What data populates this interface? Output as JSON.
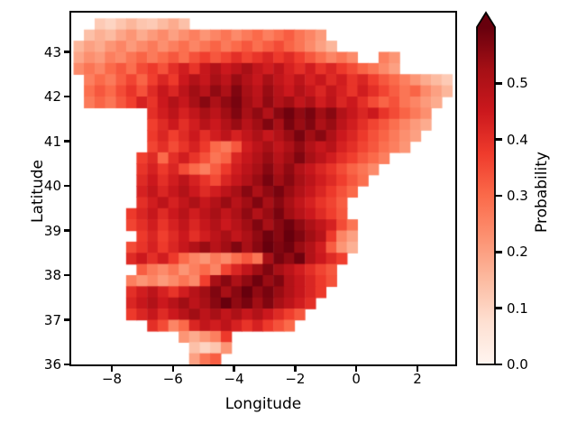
{
  "axes": {
    "xlabel": "Longitude",
    "ylabel": "Latitude",
    "xticks": [
      {
        "v": -8,
        "label": "−8"
      },
      {
        "v": -6,
        "label": "−6"
      },
      {
        "v": -4,
        "label": "−4"
      },
      {
        "v": -2,
        "label": "−2"
      },
      {
        "v": 0,
        "label": "0"
      },
      {
        "v": 2,
        "label": "2"
      }
    ],
    "yticks": [
      {
        "v": 43,
        "label": "43"
      },
      {
        "v": 42,
        "label": "42"
      },
      {
        "v": 41,
        "label": "41"
      },
      {
        "v": 40,
        "label": "40"
      },
      {
        "v": 39,
        "label": "39"
      },
      {
        "v": 38,
        "label": "38"
      },
      {
        "v": 37,
        "label": "37"
      },
      {
        "v": 36,
        "label": "36"
      }
    ],
    "xlim": [
      -9.32,
      3.22
    ],
    "ylim": [
      36.0,
      43.88
    ],
    "spine_color": "#000000",
    "text_color": "#000000",
    "background": "#ffffff"
  },
  "colorbar": {
    "label": "Probability",
    "extend": "max",
    "cmap": "Reds",
    "vmin": 0.0,
    "vmax": 0.6,
    "ticks": [
      {
        "v": 0.0,
        "label": "0.0"
      },
      {
        "v": 0.1,
        "label": "0.1"
      },
      {
        "v": 0.2,
        "label": "0.2"
      },
      {
        "v": 0.3,
        "label": "0.3"
      },
      {
        "v": 0.4,
        "label": "0.4"
      },
      {
        "v": 0.5,
        "label": "0.5"
      }
    ],
    "stops": [
      [
        0.0,
        "#fff5f0"
      ],
      [
        0.125,
        "#fee0d2"
      ],
      [
        0.25,
        "#fcbba1"
      ],
      [
        0.375,
        "#fc9272"
      ],
      [
        0.5,
        "#fb6a4a"
      ],
      [
        0.625,
        "#ef3b2c"
      ],
      [
        0.75,
        "#cb181d"
      ],
      [
        0.875,
        "#a50f15"
      ],
      [
        1.0,
        "#67000d"
      ]
    ]
  },
  "chart_data": {
    "type": "heatmap",
    "title": "",
    "xlabel": "Longitude",
    "ylabel": "Latitude",
    "value_label": "Probability",
    "vmin": 0.0,
    "vmax": 0.6,
    "lon_step": 0.344,
    "lat_step": 0.25,
    "lon_centers": [
      -9.08,
      -8.74,
      -8.39,
      -8.05,
      -7.7,
      -7.36,
      -7.02,
      -6.67,
      -6.33,
      -5.98,
      -5.64,
      -5.3,
      -4.95,
      -4.61,
      -4.26,
      -3.92,
      -3.58,
      -3.23,
      -2.89,
      -2.54,
      -2.2,
      -1.86,
      -1.51,
      -1.17,
      -0.82,
      -0.48,
      -0.14,
      0.21,
      0.55,
      0.9,
      1.24,
      1.58,
      1.93,
      2.27,
      2.62,
      2.96
    ],
    "lat_centers": [
      43.625,
      43.375,
      43.125,
      42.875,
      42.625,
      42.375,
      42.125,
      41.875,
      41.625,
      41.375,
      41.125,
      40.875,
      40.625,
      40.375,
      40.125,
      39.875,
      39.625,
      39.375,
      39.125,
      38.875,
      38.625,
      38.375,
      38.125,
      37.875,
      37.625,
      37.375,
      37.125,
      36.875,
      36.625,
      36.375,
      36.125
    ],
    "values": [
      [
        null,
        null,
        0.12,
        0.1,
        0.13,
        0.16,
        0.13,
        0.12,
        0.15,
        0.18,
        0.14,
        null,
        null,
        null,
        null,
        null,
        null,
        null,
        null,
        null,
        null,
        null,
        null,
        null,
        null,
        null,
        null,
        null,
        null,
        null,
        null,
        null,
        null,
        null,
        null,
        null
      ],
      [
        null,
        0.14,
        0.17,
        0.15,
        0.19,
        0.22,
        0.18,
        0.21,
        0.24,
        0.2,
        0.23,
        0.26,
        0.22,
        0.25,
        0.28,
        0.24,
        0.27,
        0.3,
        0.26,
        0.29,
        0.32,
        0.28,
        0.25,
        0.21,
        null,
        null,
        null,
        null,
        null,
        null,
        null,
        null,
        null,
        null,
        null,
        null
      ],
      [
        0.16,
        0.2,
        0.18,
        0.22,
        0.25,
        0.21,
        0.24,
        0.27,
        0.23,
        0.26,
        0.29,
        0.25,
        0.28,
        0.31,
        0.27,
        0.3,
        0.33,
        0.29,
        0.32,
        0.35,
        0.31,
        0.28,
        0.24,
        0.2,
        0.16,
        null,
        null,
        null,
        null,
        null,
        null,
        null,
        null,
        null,
        null,
        null
      ],
      [
        0.19,
        0.23,
        0.21,
        0.26,
        0.24,
        0.28,
        0.31,
        0.27,
        0.3,
        0.33,
        0.29,
        0.34,
        0.37,
        0.33,
        0.36,
        0.4,
        0.36,
        0.39,
        0.42,
        0.38,
        0.41,
        0.37,
        0.33,
        0.29,
        0.25,
        0.28,
        0.24,
        null,
        null,
        0.26,
        0.22,
        null,
        null,
        null,
        null,
        null
      ],
      [
        0.24,
        0.28,
        0.25,
        0.3,
        0.33,
        0.29,
        0.35,
        0.38,
        0.34,
        0.4,
        0.44,
        0.39,
        0.46,
        0.5,
        0.45,
        0.48,
        0.52,
        0.47,
        0.44,
        0.48,
        0.43,
        0.4,
        0.44,
        0.39,
        0.42,
        0.38,
        0.35,
        0.31,
        0.28,
        0.24,
        0.2,
        null,
        null,
        null,
        null,
        null
      ],
      [
        null,
        0.26,
        0.3,
        0.27,
        0.32,
        0.36,
        0.31,
        0.37,
        0.42,
        0.38,
        0.45,
        0.5,
        0.46,
        0.52,
        0.48,
        0.54,
        0.5,
        0.46,
        0.52,
        0.47,
        0.44,
        0.48,
        0.43,
        0.46,
        0.41,
        0.44,
        0.39,
        0.42,
        0.37,
        0.33,
        0.3,
        0.26,
        0.22,
        0.18,
        0.15,
        0.12
      ],
      [
        null,
        0.29,
        0.33,
        0.3,
        0.35,
        0.39,
        0.34,
        0.41,
        0.46,
        0.42,
        0.48,
        0.53,
        0.49,
        0.55,
        0.51,
        0.57,
        0.52,
        0.48,
        0.54,
        0.49,
        0.45,
        0.5,
        0.46,
        0.42,
        0.47,
        0.43,
        0.39,
        0.44,
        0.4,
        0.36,
        0.32,
        0.28,
        0.31,
        0.24,
        0.2,
        0.16
      ],
      [
        null,
        0.27,
        0.31,
        0.28,
        0.33,
        0.37,
        0.43,
        0.39,
        0.45,
        0.5,
        0.46,
        0.52,
        0.56,
        0.51,
        0.55,
        0.58,
        0.53,
        0.49,
        0.55,
        0.5,
        0.53,
        0.47,
        0.51,
        0.44,
        0.48,
        0.42,
        0.45,
        0.4,
        0.35,
        0.31,
        0.34,
        0.28,
        0.25,
        0.21,
        0.18,
        null
      ],
      [
        null,
        null,
        null,
        null,
        null,
        null,
        null,
        0.4,
        0.44,
        0.48,
        0.43,
        0.47,
        0.52,
        0.48,
        0.53,
        0.57,
        0.52,
        0.55,
        0.5,
        0.56,
        0.59,
        0.55,
        0.58,
        0.53,
        0.56,
        0.5,
        0.46,
        0.42,
        0.45,
        0.39,
        0.35,
        0.31,
        0.27,
        0.23,
        null,
        null
      ],
      [
        null,
        null,
        null,
        null,
        null,
        null,
        null,
        0.37,
        0.41,
        0.45,
        0.4,
        0.44,
        0.49,
        0.45,
        0.5,
        0.54,
        0.49,
        0.53,
        0.57,
        0.52,
        0.58,
        0.54,
        0.57,
        0.51,
        0.54,
        0.48,
        0.44,
        0.4,
        0.36,
        0.33,
        0.29,
        0.25,
        0.21,
        0.18,
        null,
        null
      ],
      [
        null,
        null,
        null,
        null,
        null,
        null,
        null,
        0.38,
        0.42,
        0.37,
        0.41,
        0.45,
        0.4,
        0.44,
        0.48,
        0.43,
        0.47,
        0.51,
        0.46,
        0.5,
        0.54,
        0.58,
        0.53,
        0.56,
        0.51,
        0.45,
        0.42,
        0.38,
        0.34,
        0.31,
        0.27,
        0.23,
        0.2,
        null,
        null,
        null
      ],
      [
        null,
        null,
        null,
        null,
        null,
        null,
        null,
        0.36,
        0.4,
        0.35,
        0.39,
        0.43,
        0.38,
        0.3,
        0.27,
        0.33,
        0.44,
        0.48,
        0.52,
        0.47,
        0.51,
        0.55,
        0.5,
        0.46,
        0.49,
        0.43,
        0.4,
        0.36,
        0.33,
        0.29,
        0.26,
        0.22,
        null,
        null,
        null,
        null
      ],
      [
        null,
        null,
        null,
        null,
        null,
        null,
        0.37,
        0.41,
        0.3,
        0.4,
        0.44,
        0.39,
        0.34,
        0.28,
        0.31,
        0.42,
        0.46,
        0.5,
        0.54,
        0.49,
        0.53,
        0.57,
        0.52,
        0.48,
        0.44,
        0.4,
        0.37,
        0.33,
        0.3,
        0.26,
        null,
        null,
        null,
        null,
        null,
        null
      ],
      [
        null,
        null,
        null,
        null,
        null,
        null,
        0.39,
        0.43,
        0.38,
        0.42,
        0.35,
        0.3,
        0.26,
        0.32,
        0.38,
        0.44,
        0.48,
        0.52,
        0.56,
        0.51,
        0.55,
        0.5,
        0.46,
        0.42,
        0.39,
        0.35,
        0.31,
        0.28,
        0.24,
        null,
        null,
        null,
        null,
        null,
        null,
        null
      ],
      [
        null,
        null,
        null,
        null,
        null,
        null,
        0.41,
        0.45,
        0.4,
        0.44,
        0.48,
        0.43,
        0.39,
        0.35,
        0.42,
        0.46,
        0.5,
        0.54,
        0.58,
        0.53,
        0.56,
        0.52,
        0.48,
        0.44,
        0.41,
        0.37,
        0.33,
        0.29,
        null,
        null,
        null,
        null,
        null,
        null,
        null,
        null
      ],
      [
        null,
        null,
        null,
        null,
        null,
        null,
        0.43,
        0.47,
        0.42,
        0.46,
        0.5,
        0.45,
        0.41,
        0.44,
        0.48,
        0.52,
        0.56,
        0.51,
        0.55,
        0.58,
        0.54,
        0.5,
        0.46,
        0.42,
        0.38,
        0.34,
        0.3,
        null,
        null,
        null,
        null,
        null,
        null,
        null,
        null,
        null
      ],
      [
        null,
        null,
        null,
        null,
        null,
        null,
        0.4,
        0.44,
        0.48,
        0.43,
        0.47,
        0.51,
        0.46,
        0.5,
        0.54,
        0.49,
        0.53,
        0.57,
        0.52,
        0.56,
        0.52,
        0.47,
        0.43,
        0.39,
        0.36,
        0.32,
        null,
        null,
        null,
        null,
        null,
        null,
        null,
        null,
        null,
        null
      ],
      [
        null,
        null,
        null,
        null,
        null,
        0.38,
        0.42,
        0.46,
        0.41,
        0.45,
        0.49,
        0.44,
        0.48,
        0.52,
        0.47,
        0.51,
        0.55,
        0.5,
        0.54,
        0.58,
        0.53,
        0.49,
        0.45,
        0.41,
        0.37,
        0.33,
        null,
        null,
        null,
        null,
        null,
        null,
        null,
        null,
        null,
        null
      ],
      [
        null,
        null,
        null,
        null,
        null,
        0.36,
        0.4,
        0.44,
        0.39,
        0.43,
        0.47,
        0.42,
        0.46,
        0.5,
        0.45,
        0.49,
        0.53,
        0.57,
        0.52,
        0.56,
        0.59,
        0.55,
        0.51,
        0.47,
        0.43,
        0.35,
        0.28,
        null,
        null,
        null,
        null,
        null,
        null,
        null,
        null,
        null
      ],
      [
        null,
        null,
        null,
        null,
        null,
        null,
        0.38,
        0.42,
        0.37,
        0.41,
        0.45,
        0.4,
        0.44,
        0.48,
        0.52,
        0.47,
        0.51,
        0.55,
        0.59,
        0.56,
        0.6,
        0.57,
        0.53,
        0.49,
        0.38,
        0.25,
        0.2,
        null,
        null,
        null,
        null,
        null,
        null,
        null,
        null,
        null
      ],
      [
        null,
        null,
        null,
        null,
        null,
        0.35,
        0.39,
        0.43,
        0.38,
        0.42,
        0.46,
        0.5,
        0.54,
        0.49,
        0.53,
        0.57,
        0.52,
        0.56,
        0.6,
        0.57,
        0.59,
        0.54,
        0.5,
        0.44,
        0.32,
        0.22,
        0.17,
        null,
        null,
        null,
        null,
        null,
        null,
        null,
        null,
        null
      ],
      [
        null,
        null,
        null,
        null,
        null,
        0.41,
        0.45,
        0.4,
        0.44,
        0.38,
        0.3,
        0.25,
        0.22,
        0.27,
        0.24,
        0.29,
        0.33,
        0.28,
        0.52,
        0.58,
        0.55,
        0.59,
        0.5,
        0.45,
        0.41,
        0.37,
        null,
        null,
        null,
        null,
        null,
        null,
        null,
        null,
        null,
        null
      ],
      [
        null,
        null,
        null,
        null,
        null,
        null,
        0.32,
        0.27,
        0.24,
        0.28,
        0.22,
        0.26,
        0.3,
        0.25,
        0.36,
        0.42,
        0.47,
        0.53,
        0.57,
        0.52,
        0.48,
        0.44,
        0.4,
        0.36,
        0.33,
        null,
        null,
        null,
        null,
        null,
        null,
        null,
        null,
        null,
        null,
        null
      ],
      [
        null,
        null,
        null,
        null,
        null,
        0.26,
        0.22,
        0.25,
        0.21,
        0.24,
        0.28,
        0.24,
        0.37,
        0.52,
        0.56,
        0.51,
        0.55,
        0.59,
        0.54,
        0.57,
        0.5,
        0.46,
        0.42,
        0.38,
        0.34,
        null,
        null,
        null,
        null,
        null,
        null,
        null,
        null,
        null,
        null,
        null
      ],
      [
        null,
        null,
        null,
        null,
        null,
        0.4,
        0.44,
        0.48,
        0.43,
        0.39,
        0.44,
        0.49,
        0.53,
        0.57,
        0.52,
        0.56,
        0.6,
        0.55,
        0.58,
        0.54,
        0.5,
        0.46,
        0.42,
        0.38,
        null,
        null,
        null,
        null,
        null,
        null,
        null,
        null,
        null,
        null,
        null,
        null
      ],
      [
        null,
        null,
        null,
        null,
        null,
        0.42,
        0.46,
        0.5,
        0.45,
        0.49,
        0.53,
        0.48,
        0.52,
        0.56,
        0.6,
        0.55,
        0.58,
        0.53,
        0.57,
        0.52,
        0.48,
        0.44,
        0.4,
        null,
        null,
        null,
        null,
        null,
        null,
        null,
        null,
        null,
        null,
        null,
        null,
        null
      ],
      [
        null,
        null,
        null,
        null,
        null,
        0.38,
        0.42,
        0.46,
        0.41,
        0.45,
        0.49,
        0.53,
        0.48,
        0.52,
        0.47,
        0.51,
        0.46,
        0.5,
        0.45,
        0.41,
        0.37,
        0.33,
        null,
        null,
        null,
        null,
        null,
        null,
        null,
        null,
        null,
        null,
        null,
        null,
        null,
        null
      ],
      [
        null,
        null,
        null,
        null,
        null,
        null,
        null,
        0.4,
        0.35,
        0.25,
        0.3,
        0.42,
        0.47,
        0.44,
        0.48,
        0.43,
        0.39,
        0.43,
        0.38,
        0.34,
        0.3,
        null,
        null,
        null,
        null,
        null,
        null,
        null,
        null,
        null,
        null,
        null,
        null,
        null,
        null,
        null
      ],
      [
        null,
        null,
        null,
        null,
        null,
        null,
        null,
        null,
        null,
        null,
        0.22,
        0.18,
        0.22,
        0.26,
        0.38,
        null,
        null,
        null,
        null,
        null,
        null,
        null,
        null,
        null,
        null,
        null,
        null,
        null,
        null,
        null,
        null,
        null,
        null,
        null,
        null,
        null
      ],
      [
        null,
        null,
        null,
        null,
        null,
        null,
        null,
        null,
        null,
        null,
        null,
        0.14,
        0.1,
        0.13,
        0.22,
        null,
        null,
        null,
        null,
        null,
        null,
        null,
        null,
        null,
        null,
        null,
        null,
        null,
        null,
        null,
        null,
        null,
        null,
        null,
        null,
        null
      ],
      [
        null,
        null,
        null,
        null,
        null,
        null,
        null,
        null,
        null,
        null,
        null,
        0.2,
        0.28,
        0.32,
        null,
        null,
        null,
        null,
        null,
        null,
        null,
        null,
        null,
        null,
        null,
        null,
        null,
        null,
        null,
        null,
        null,
        null,
        null,
        null,
        null,
        null
      ]
    ]
  }
}
